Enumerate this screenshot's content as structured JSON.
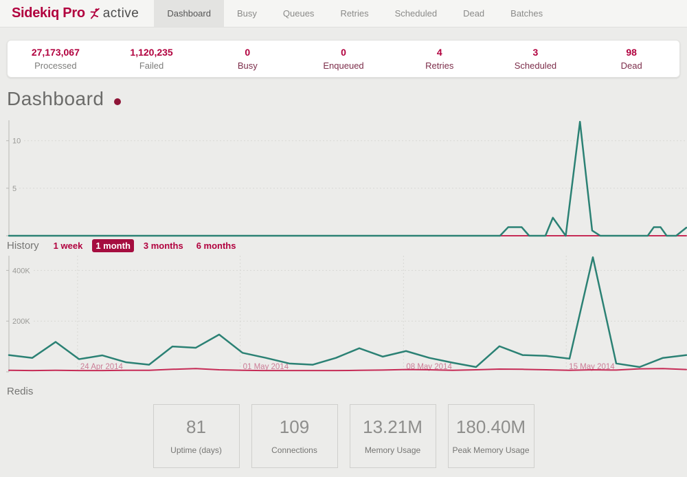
{
  "nav": {
    "brand": {
      "name": "Sidekiq Pro",
      "suffix": "active"
    },
    "tabs": [
      {
        "label": "Dashboard",
        "active": true
      },
      {
        "label": "Busy",
        "active": false
      },
      {
        "label": "Queues",
        "active": false
      },
      {
        "label": "Retries",
        "active": false
      },
      {
        "label": "Scheduled",
        "active": false
      },
      {
        "label": "Dead",
        "active": false
      },
      {
        "label": "Batches",
        "active": false
      }
    ]
  },
  "stats": {
    "items": [
      {
        "value": "27,173,067",
        "label": "Processed",
        "link": false
      },
      {
        "value": "1,120,235",
        "label": "Failed",
        "link": false
      },
      {
        "value": "0",
        "label": "Busy",
        "link": true
      },
      {
        "value": "0",
        "label": "Enqueued",
        "link": true
      },
      {
        "value": "4",
        "label": "Retries",
        "link": true
      },
      {
        "value": "3",
        "label": "Scheduled",
        "link": true
      },
      {
        "value": "98",
        "label": "Dead",
        "link": true
      }
    ]
  },
  "page": {
    "title": "Dashboard"
  },
  "history": {
    "label": "History",
    "periods": [
      {
        "label": "1 week",
        "selected": false
      },
      {
        "label": "1 month",
        "selected": true
      },
      {
        "label": "3 months",
        "selected": false
      },
      {
        "label": "6 months",
        "selected": false
      }
    ]
  },
  "redis": {
    "label": "Redis",
    "cards": [
      {
        "value": "81",
        "label": "Uptime (days)"
      },
      {
        "value": "109",
        "label": "Connections"
      },
      {
        "value": "13.21M",
        "label": "Memory Usage"
      },
      {
        "value": "180.40M",
        "label": "Peak Memory Usage"
      }
    ]
  },
  "colors": {
    "accent": "#b1003e",
    "processed_line": "#2b8174",
    "failed_line": "#c62b56",
    "grid": "#d8d8d4",
    "axis": "#b8b8b4",
    "ytick_label": "#999996",
    "date_label": "#cb7d97"
  },
  "chart_data": [
    {
      "id": "realtime",
      "type": "line",
      "title": "",
      "xlabel": "",
      "ylabel": "",
      "legend": "none",
      "grid": true,
      "ylim": [
        0,
        12.15
      ],
      "yticks": [
        {
          "v": 5,
          "label": "5"
        },
        {
          "v": 10,
          "label": "10"
        }
      ],
      "xticks": [],
      "series": [
        {
          "name": "failed",
          "color": "#c62b56",
          "width": 2,
          "points": [
            {
              "x": 0,
              "v": 0
            },
            {
              "x": 1,
              "v": 0
            }
          ]
        },
        {
          "name": "processed",
          "color": "#2b8174",
          "width": 2.5,
          "points": [
            {
              "x": 0,
              "v": 0
            },
            {
              "x": 0.725,
              "v": 0
            },
            {
              "x": 0.737,
              "v": 0.9
            },
            {
              "x": 0.757,
              "v": 0.9
            },
            {
              "x": 0.768,
              "v": 0
            },
            {
              "x": 0.792,
              "v": 0
            },
            {
              "x": 0.803,
              "v": 1.9
            },
            {
              "x": 0.822,
              "v": 0
            },
            {
              "x": 0.843,
              "v": 12
            },
            {
              "x": 0.861,
              "v": 0.55
            },
            {
              "x": 0.873,
              "v": 0
            },
            {
              "x": 0.943,
              "v": 0
            },
            {
              "x": 0.952,
              "v": 0.9
            },
            {
              "x": 0.962,
              "v": 0.9
            },
            {
              "x": 0.971,
              "v": 0
            },
            {
              "x": 0.985,
              "v": 0
            },
            {
              "x": 1,
              "v": 0.85
            }
          ]
        }
      ]
    },
    {
      "id": "history",
      "type": "line",
      "title": "",
      "xlabel": "",
      "ylabel": "",
      "legend": "none",
      "grid": true,
      "unit": "thousands of jobs per day",
      "ylim": [
        0,
        458
      ],
      "yticks": [
        {
          "v": 200,
          "label": "200K"
        },
        {
          "v": 400,
          "label": "400K"
        }
      ],
      "xticks": [
        {
          "f": 0.1013,
          "label": "24 Apr 2014"
        },
        {
          "f": 0.3414,
          "label": "01 May 2014"
        },
        {
          "f": 0.5825,
          "label": "08 May 2014"
        },
        {
          "f": 0.8227,
          "label": "15 May 2014"
        }
      ],
      "series": [
        {
          "name": "failed",
          "color": "#c62b56",
          "width": 2,
          "values": [
            6,
            5,
            6,
            5,
            5,
            6,
            6,
            10,
            13,
            8,
            6,
            5,
            5,
            5,
            5,
            6,
            7,
            9,
            8,
            6,
            8,
            11,
            10,
            8,
            6,
            8,
            7,
            12,
            13,
            9
          ]
        },
        {
          "name": "processed",
          "color": "#2b8174",
          "width": 2.5,
          "values": [
            66,
            55,
            118,
            50,
            65,
            38,
            28,
            100,
            95,
            147,
            75,
            55,
            33,
            28,
            55,
            93,
            60,
            82,
            55,
            36,
            19,
            101,
            66,
            63,
            52,
            452,
            33,
            19,
            55,
            66
          ]
        }
      ]
    }
  ]
}
